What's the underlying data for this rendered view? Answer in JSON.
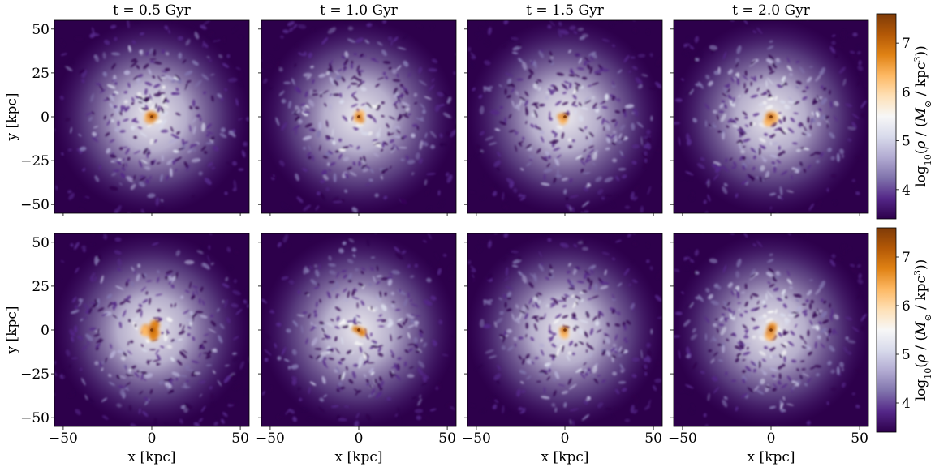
{
  "figure": {
    "colormap": [
      "#2d004b",
      "#542788",
      "#8073ac",
      "#b2abd2",
      "#d8daeb",
      "#f7f7f7",
      "#fee0b6",
      "#fdb863",
      "#e08214",
      "#b35806",
      "#7f3b08"
    ],
    "colorbar_label_parts": [
      "log",
      "10",
      "(",
      "ρ",
      " / (",
      "M",
      "⊙",
      " / kpc",
      "3",
      "))"
    ]
  },
  "chart_data": [
    {
      "type": "heatmap",
      "panels": [
        {
          "title": "t = 0.5 Gyr",
          "xlabel": "",
          "ylabel": "y [kpc]",
          "core": "extended"
        },
        {
          "title": "t = 1.0 Gyr",
          "xlabel": "",
          "ylabel": "",
          "core": "compact"
        },
        {
          "title": "t = 1.5 Gyr",
          "xlabel": "",
          "ylabel": "",
          "core": "compact"
        },
        {
          "title": "t = 2.0 Gyr",
          "xlabel": "",
          "ylabel": "",
          "core": "extended"
        }
      ],
      "xlim": [
        -55,
        55
      ],
      "ylim": [
        -55,
        55
      ],
      "xticks": [
        -50,
        0,
        50
      ],
      "yticks": [
        -50,
        -25,
        0,
        25,
        50
      ],
      "colorbar": {
        "range": [
          3.4,
          7.6
        ],
        "ticks": [
          4,
          5,
          6,
          7
        ]
      }
    },
    {
      "type": "heatmap",
      "panels": [
        {
          "title": "",
          "xlabel": "x [kpc]",
          "ylabel": "y [kpc]",
          "core": "extended"
        },
        {
          "title": "",
          "xlabel": "x [kpc]",
          "ylabel": "",
          "core": "compact"
        },
        {
          "title": "",
          "xlabel": "x [kpc]",
          "ylabel": "",
          "core": "compact"
        },
        {
          "title": "",
          "xlabel": "x [kpc]",
          "ylabel": "",
          "core": "extended"
        }
      ],
      "xlim": [
        -55,
        55
      ],
      "ylim": [
        -55,
        55
      ],
      "xticks": [
        -50,
        0,
        50
      ],
      "yticks": [
        -50,
        -25,
        0,
        25,
        50
      ],
      "colorbar": {
        "range": [
          3.4,
          7.6
        ],
        "ticks": [
          4,
          5,
          6,
          7
        ]
      }
    }
  ]
}
